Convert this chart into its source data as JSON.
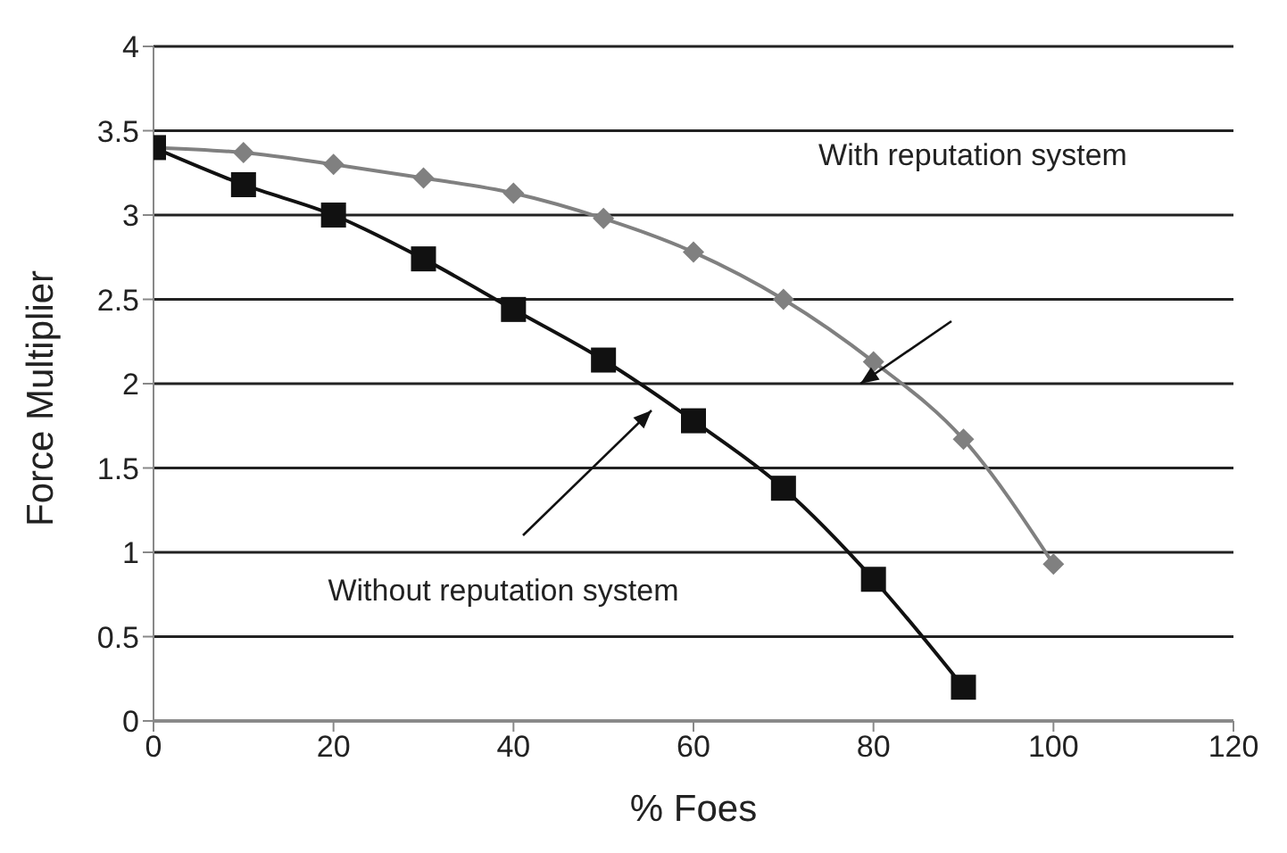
{
  "chart_data": {
    "type": "line",
    "xlabel": "% Foes",
    "ylabel": "Force Multiplier",
    "x": [
      0,
      10,
      20,
      30,
      40,
      50,
      60,
      70,
      80,
      90,
      100
    ],
    "series": [
      {
        "color": "#808080",
        "marker": "diamond",
        "values": [
          3.4,
          3.37,
          3.3,
          3.22,
          3.13,
          2.98,
          2.78,
          2.5,
          2.13,
          1.67,
          0.93
        ]
      },
      {
        "color": "#111111",
        "marker": "square",
        "values": [
          3.4,
          3.18,
          3.0,
          2.74,
          2.44,
          2.14,
          1.78,
          1.38,
          0.84,
          0.2,
          null
        ]
      }
    ],
    "xlim": [
      0,
      120
    ],
    "xticks": [
      0,
      20,
      40,
      60,
      80,
      100,
      120
    ],
    "ylim": [
      0,
      4
    ],
    "yticks": [
      0,
      0.5,
      1,
      1.5,
      2,
      2.5,
      3,
      3.5,
      4
    ],
    "grid": "y",
    "legend": false,
    "annotations": [
      "With reputation system",
      "Without reputation system"
    ]
  }
}
